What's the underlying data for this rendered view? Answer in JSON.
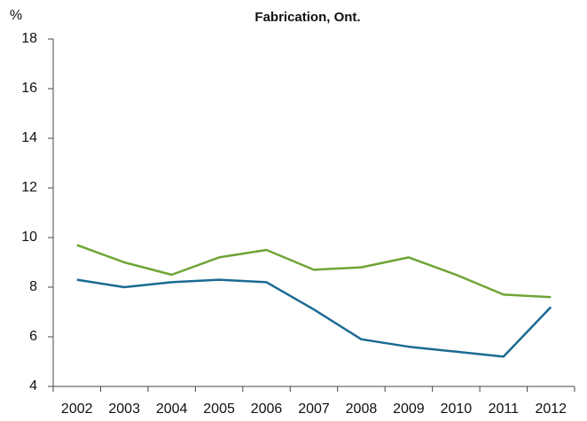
{
  "chart_data": {
    "type": "line",
    "title": "Fabrication, Ont.",
    "y_label": "%",
    "categories": [
      "2002",
      "2003",
      "2004",
      "2005",
      "2006",
      "2007",
      "2008",
      "2009",
      "2010",
      "2011",
      "2012"
    ],
    "series": [
      {
        "color": "#6ea535",
        "values": [
          9.7,
          9.0,
          8.5,
          9.2,
          9.5,
          8.7,
          8.8,
          9.2,
          8.5,
          7.7,
          7.6
        ]
      },
      {
        "color": "#1a6a93",
        "values": [
          8.3,
          8.0,
          8.2,
          8.3,
          8.2,
          7.1,
          5.9,
          5.6,
          5.4,
          5.2,
          7.2
        ]
      }
    ],
    "ylim": [
      4,
      18
    ],
    "yticks": [
      4,
      6,
      8,
      10,
      12,
      14,
      16,
      18
    ],
    "grid": false
  }
}
